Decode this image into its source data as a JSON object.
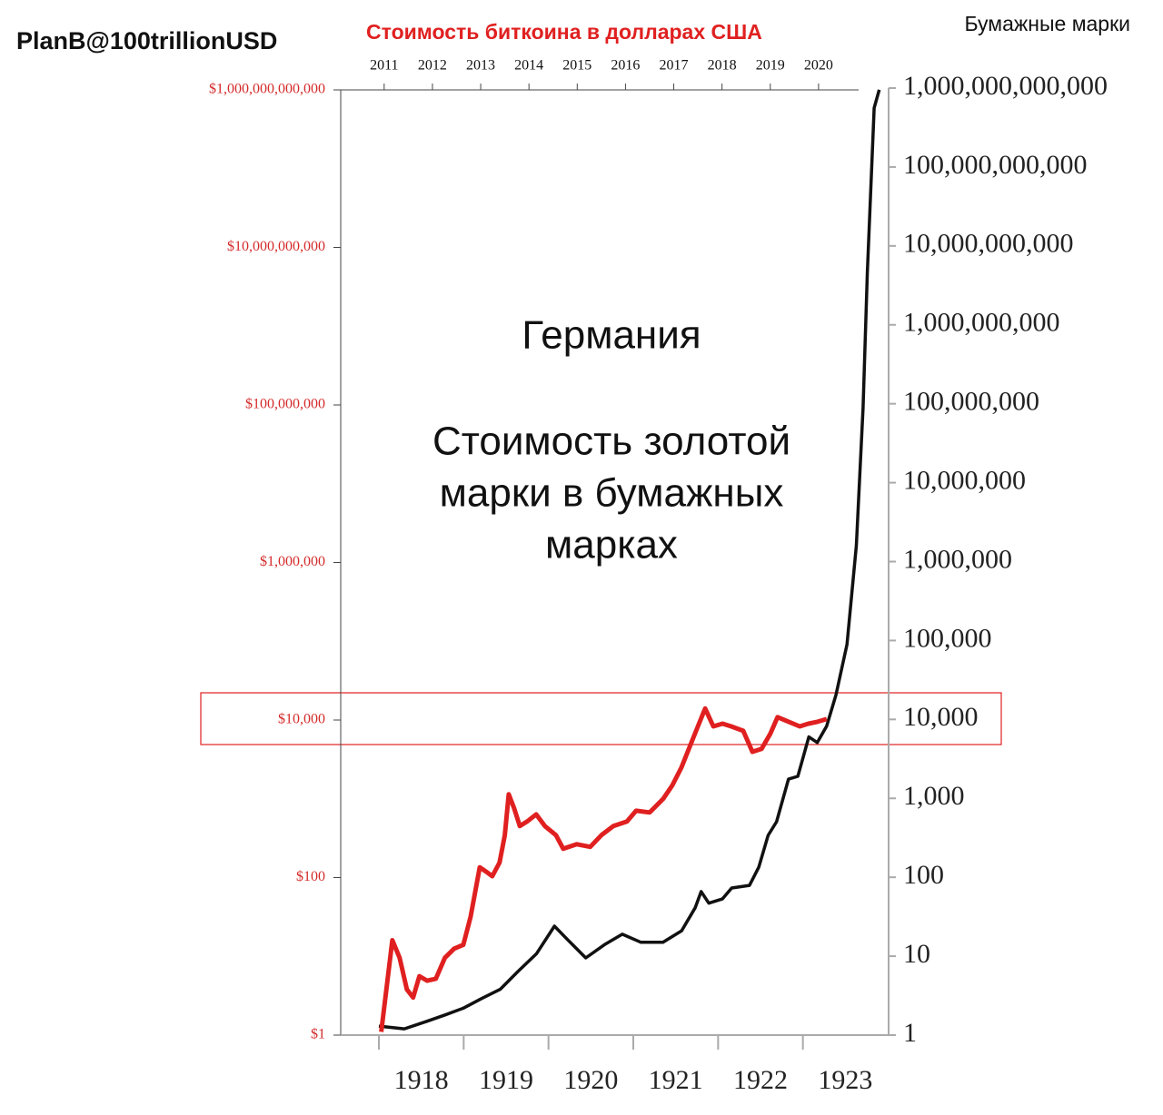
{
  "watermark": "PlanB@100trillionUSD",
  "chart_data": [
    {
      "type": "line",
      "title": "Стоимость биткоина в долларах США",
      "log": true,
      "color": "#e02020",
      "xlim": [
        2010.1,
        2020.83
      ],
      "xticks": [
        2011,
        2012,
        2013,
        2014,
        2015,
        2016,
        2017,
        2018,
        2019,
        2020
      ],
      "ylim": [
        1,
        1000000000000
      ],
      "yticks": [
        {
          "value": 1,
          "label": "$1"
        },
        {
          "value": 100,
          "label": "$100"
        },
        {
          "value": 10000,
          "label": "$10,000"
        },
        {
          "value": 1000000,
          "label": "$1,000,000"
        },
        {
          "value": 100000000,
          "label": "$100,000,000"
        },
        {
          "value": 10000000000,
          "label": "$10,000,000,000"
        },
        {
          "value": 1000000000000,
          "label": "$1,000,000,000,000"
        }
      ],
      "x": [
        2010.94,
        2011.17,
        2011.32,
        2011.47,
        2011.6,
        2011.73,
        2011.89,
        2012.07,
        2012.26,
        2012.45,
        2012.64,
        2012.79,
        2012.98,
        2013.11,
        2013.24,
        2013.39,
        2013.5,
        2013.58,
        2013.69,
        2013.81,
        2013.96,
        2014.15,
        2014.33,
        2014.56,
        2014.71,
        2014.99,
        2015.27,
        2015.5,
        2015.75,
        2016.03,
        2016.22,
        2016.5,
        2016.78,
        2016.97,
        2017.16,
        2017.35,
        2017.5,
        2017.65,
        2017.82,
        2018.01,
        2018.19,
        2018.44,
        2018.63,
        2018.82,
        2019.0,
        2019.15,
        2019.38,
        2019.61,
        2019.79,
        2019.98,
        2020.17
      ],
      "values": [
        1.1,
        16,
        9.6,
        3.8,
        3,
        5.6,
        4.9,
        5.2,
        9.6,
        12.5,
        14,
        31.6,
        135,
        119,
        104,
        155,
        345,
        1140,
        765,
        450,
        515,
        635,
        450,
        345,
        232,
        265,
        245,
        345,
        450,
        515,
        705,
        670,
        1000,
        1480,
        2500,
        4900,
        8300,
        14000,
        8300,
        9000,
        8300,
        7300,
        3950,
        4300,
        6700,
        10900,
        9500,
        8300,
        9000,
        9500,
        10300
      ]
    },
    {
      "type": "line",
      "y_label": "Бумажные марки",
      "log": true,
      "color": "#111111",
      "annotations": [
        "Германия",
        "Стоимость золотой",
        "марки в бумажных",
        "марках"
      ],
      "xlim": [
        1917.55,
        1924
      ],
      "xticks": [
        1918,
        1919,
        1920,
        1921,
        1922,
        1923
      ],
      "ylim": [
        1,
        1000000000000
      ],
      "yticks": [
        1,
        10,
        100,
        {
          "value": 1000,
          "label": "1,000"
        },
        {
          "value": 10000,
          "label": "10,000"
        },
        {
          "value": 100000,
          "label": "100,000"
        },
        {
          "value": 1000000,
          "label": "1,000,000"
        },
        {
          "value": 10000000,
          "label": "10,000,000"
        },
        {
          "value": 100000000,
          "label": "100,000,000"
        },
        {
          "value": 1000000000,
          "label": "1,000,000,000"
        },
        {
          "value": 10000000000,
          "label": "10,000,000,000"
        },
        {
          "value": 100000000000,
          "label": "100,000,000,000"
        },
        {
          "value": 1000000000000,
          "label": "1,000,000,000,000"
        }
      ],
      "x": [
        1918.0,
        1918.3,
        1918.57,
        1918.78,
        1919.0,
        1919.21,
        1919.43,
        1919.64,
        1919.86,
        1920.07,
        1920.23,
        1920.44,
        1920.66,
        1920.87,
        1921.09,
        1921.35,
        1921.57,
        1921.73,
        1921.8,
        1921.89,
        1922.05,
        1922.16,
        1922.37,
        1922.48,
        1922.59,
        1922.69,
        1922.83,
        1922.94,
        1923.07,
        1923.17,
        1923.28,
        1923.39,
        1923.52,
        1923.63,
        1923.71,
        1923.76,
        1923.84,
        1923.9
      ],
      "values": [
        1.3,
        1.2,
        1.5,
        1.8,
        2.2,
        2.9,
        3.8,
        6.4,
        10.8,
        24,
        16,
        9.5,
        14,
        19,
        15,
        15,
        21,
        41,
        66,
        47,
        53,
        73,
        79,
        134,
        340,
        505,
        1750,
        1900,
        6000,
        5100,
        8200,
        20500,
        89000,
        1600000,
        89000000,
        4600000000,
        560000000000,
        950000000000
      ]
    }
  ]
}
